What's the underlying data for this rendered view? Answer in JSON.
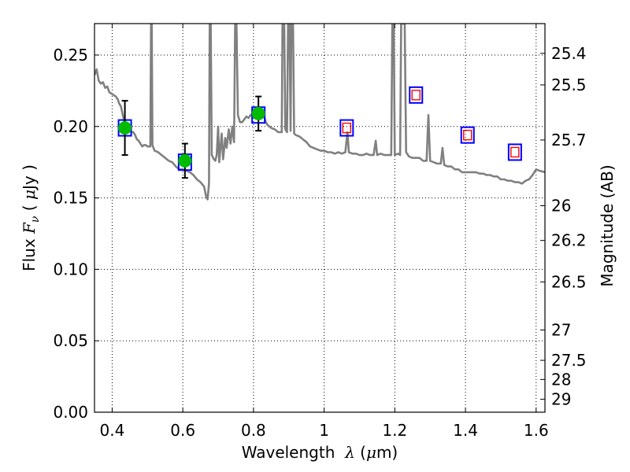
{
  "chart_data": {
    "type": "line",
    "xlabel": "Wavelength  λ (μm)",
    "ylabel": "Flux  F_ν  ( μJy )",
    "ylabel_parts": {
      "a": "Flux  ",
      "b": "F",
      "c": "ν",
      "d": "  ( ",
      "e": "μ",
      "f": "Jy )"
    },
    "xlabel_parts": {
      "a": "Wavelength  ",
      "b": "λ",
      "c": " (",
      "d": "μ",
      "e": "m)"
    },
    "y2label": "Magnitude (AB)",
    "xlim": [
      0.35,
      1.625
    ],
    "ylim": [
      0.0,
      0.272
    ],
    "grid": true,
    "x_ticks": [
      {
        "v": 0.4,
        "label": "0.4"
      },
      {
        "v": 0.6,
        "label": "0.6"
      },
      {
        "v": 0.8,
        "label": "0.8"
      },
      {
        "v": 1.0,
        "label": "1"
      },
      {
        "v": 1.2,
        "label": "1.2"
      },
      {
        "v": 1.4,
        "label": "1.4"
      },
      {
        "v": 1.6,
        "label": "1.6"
      }
    ],
    "y_ticks": [
      {
        "v": 0.0,
        "label": "0.00"
      },
      {
        "v": 0.05,
        "label": "0.05"
      },
      {
        "v": 0.1,
        "label": "0.10"
      },
      {
        "v": 0.15,
        "label": "0.15"
      },
      {
        "v": 0.2,
        "label": "0.20"
      },
      {
        "v": 0.25,
        "label": "0.25"
      }
    ],
    "y2_ticks": [
      {
        "mag": 25.4,
        "label": "25.4"
      },
      {
        "mag": 25.5,
        "label": "25.5"
      },
      {
        "mag": 25.7,
        "label": "25.7"
      },
      {
        "mag": 26,
        "label": "26"
      },
      {
        "mag": 26.2,
        "label": "26.2"
      },
      {
        "mag": 26.5,
        "label": "26.5"
      },
      {
        "mag": 27,
        "label": "27"
      },
      {
        "mag": 27.5,
        "label": "27.5"
      },
      {
        "mag": 28,
        "label": "28"
      },
      {
        "mag": 29,
        "label": "29"
      }
    ],
    "model_spectrum": {
      "color": "#808080",
      "points": [
        [
          0.35,
          0.236
        ],
        [
          0.356,
          0.24
        ],
        [
          0.362,
          0.232
        ],
        [
          0.368,
          0.23
        ],
        [
          0.374,
          0.231
        ],
        [
          0.38,
          0.227
        ],
        [
          0.386,
          0.228
        ],
        [
          0.392,
          0.224
        ],
        [
          0.398,
          0.223
        ],
        [
          0.404,
          0.222
        ],
        [
          0.41,
          0.221
        ],
        [
          0.416,
          0.219
        ],
        [
          0.42,
          0.216
        ],
        [
          0.425,
          0.214
        ],
        [
          0.43,
          0.208
        ],
        [
          0.435,
          0.203
        ],
        [
          0.44,
          0.201
        ],
        [
          0.445,
          0.199
        ],
        [
          0.45,
          0.198
        ],
        [
          0.455,
          0.196
        ],
        [
          0.46,
          0.196
        ],
        [
          0.465,
          0.194
        ],
        [
          0.47,
          0.191
        ],
        [
          0.475,
          0.19
        ],
        [
          0.48,
          0.188
        ],
        [
          0.485,
          0.186
        ],
        [
          0.49,
          0.187
        ],
        [
          0.495,
          0.187
        ],
        [
          0.5,
          0.186
        ],
        [
          0.505,
          0.186
        ],
        [
          0.508,
          0.186
        ],
        [
          0.51,
          0.272
        ],
        [
          0.512,
          0.272
        ],
        [
          0.514,
          0.187
        ],
        [
          0.52,
          0.183
        ],
        [
          0.53,
          0.182
        ],
        [
          0.54,
          0.18
        ],
        [
          0.55,
          0.178
        ],
        [
          0.56,
          0.176
        ],
        [
          0.57,
          0.175
        ],
        [
          0.58,
          0.172
        ],
        [
          0.59,
          0.17
        ],
        [
          0.6,
          0.17
        ],
        [
          0.61,
          0.169
        ],
        [
          0.62,
          0.168
        ],
        [
          0.63,
          0.166
        ],
        [
          0.64,
          0.163
        ],
        [
          0.65,
          0.161
        ],
        [
          0.66,
          0.158
        ],
        [
          0.666,
          0.151
        ],
        [
          0.67,
          0.149
        ],
        [
          0.674,
          0.16
        ],
        [
          0.676,
          0.272
        ],
        [
          0.679,
          0.272
        ],
        [
          0.682,
          0.18
        ],
        [
          0.688,
          0.177
        ],
        [
          0.692,
          0.176
        ],
        [
          0.696,
          0.18
        ],
        [
          0.7,
          0.2
        ],
        [
          0.703,
          0.175
        ],
        [
          0.71,
          0.195
        ],
        [
          0.714,
          0.177
        ],
        [
          0.72,
          0.192
        ],
        [
          0.724,
          0.185
        ],
        [
          0.73,
          0.198
        ],
        [
          0.735,
          0.188
        ],
        [
          0.74,
          0.2
        ],
        [
          0.745,
          0.189
        ],
        [
          0.748,
          0.272
        ],
        [
          0.752,
          0.272
        ],
        [
          0.756,
          0.208
        ],
        [
          0.762,
          0.203
        ],
        [
          0.768,
          0.203
        ],
        [
          0.774,
          0.205
        ],
        [
          0.78,
          0.207
        ],
        [
          0.786,
          0.206
        ],
        [
          0.792,
          0.208
        ],
        [
          0.798,
          0.209
        ],
        [
          0.804,
          0.21
        ],
        [
          0.81,
          0.212
        ],
        [
          0.816,
          0.211
        ],
        [
          0.82,
          0.209
        ],
        [
          0.825,
          0.208
        ],
        [
          0.83,
          0.207
        ],
        [
          0.835,
          0.203
        ],
        [
          0.84,
          0.201
        ],
        [
          0.845,
          0.2
        ],
        [
          0.85,
          0.199
        ],
        [
          0.86,
          0.198
        ],
        [
          0.87,
          0.196
        ],
        [
          0.88,
          0.196
        ],
        [
          0.882,
          0.272
        ],
        [
          0.887,
          0.272
        ],
        [
          0.89,
          0.198
        ],
        [
          0.895,
          0.196
        ],
        [
          0.898,
          0.272
        ],
        [
          0.902,
          0.272
        ],
        [
          0.905,
          0.197
        ],
        [
          0.907,
          0.272
        ],
        [
          0.912,
          0.272
        ],
        [
          0.915,
          0.195
        ],
        [
          0.92,
          0.194
        ],
        [
          0.93,
          0.193
        ],
        [
          0.94,
          0.191
        ],
        [
          0.95,
          0.189
        ],
        [
          0.96,
          0.186
        ],
        [
          0.97,
          0.185
        ],
        [
          0.98,
          0.184
        ],
        [
          0.99,
          0.183
        ],
        [
          1.0,
          0.183
        ],
        [
          1.01,
          0.182
        ],
        [
          1.02,
          0.182
        ],
        [
          1.03,
          0.181
        ],
        [
          1.04,
          0.182
        ],
        [
          1.05,
          0.181
        ],
        [
          1.06,
          0.182
        ],
        [
          1.066,
          0.196
        ],
        [
          1.07,
          0.182
        ],
        [
          1.08,
          0.181
        ],
        [
          1.09,
          0.181
        ],
        [
          1.1,
          0.18
        ],
        [
          1.11,
          0.18
        ],
        [
          1.12,
          0.181
        ],
        [
          1.13,
          0.18
        ],
        [
          1.14,
          0.18
        ],
        [
          1.146,
          0.19
        ],
        [
          1.15,
          0.18
        ],
        [
          1.16,
          0.181
        ],
        [
          1.17,
          0.18
        ],
        [
          1.18,
          0.18
        ],
        [
          1.19,
          0.18
        ],
        [
          1.193,
          0.272
        ],
        [
          1.197,
          0.272
        ],
        [
          1.2,
          0.18
        ],
        [
          1.21,
          0.181
        ],
        [
          1.215,
          0.18
        ],
        [
          1.218,
          0.272
        ],
        [
          1.228,
          0.272
        ],
        [
          1.232,
          0.182
        ],
        [
          1.24,
          0.179
        ],
        [
          1.25,
          0.178
        ],
        [
          1.26,
          0.178
        ],
        [
          1.27,
          0.178
        ],
        [
          1.28,
          0.176
        ],
        [
          1.29,
          0.176
        ],
        [
          1.295,
          0.208
        ],
        [
          1.3,
          0.176
        ],
        [
          1.31,
          0.175
        ],
        [
          1.32,
          0.174
        ],
        [
          1.33,
          0.174
        ],
        [
          1.335,
          0.185
        ],
        [
          1.34,
          0.173
        ],
        [
          1.35,
          0.172
        ],
        [
          1.36,
          0.172
        ],
        [
          1.37,
          0.17
        ],
        [
          1.38,
          0.17
        ],
        [
          1.39,
          0.168
        ],
        [
          1.4,
          0.168
        ],
        [
          1.41,
          0.168
        ],
        [
          1.42,
          0.168
        ],
        [
          1.43,
          0.168
        ],
        [
          1.44,
          0.167
        ],
        [
          1.45,
          0.167
        ],
        [
          1.46,
          0.166
        ],
        [
          1.47,
          0.166
        ],
        [
          1.48,
          0.165
        ],
        [
          1.49,
          0.165
        ],
        [
          1.5,
          0.163
        ],
        [
          1.51,
          0.163
        ],
        [
          1.52,
          0.162
        ],
        [
          1.53,
          0.162
        ],
        [
          1.54,
          0.161
        ],
        [
          1.55,
          0.161
        ],
        [
          1.56,
          0.16
        ],
        [
          1.57,
          0.162
        ],
        [
          1.58,
          0.163
        ],
        [
          1.59,
          0.166
        ],
        [
          1.6,
          0.17
        ],
        [
          1.61,
          0.169
        ],
        [
          1.625,
          0.168
        ]
      ]
    },
    "observed_points": [
      {
        "x": 0.436,
        "y": 0.199,
        "yerr": 0.019,
        "color": "#00bb00",
        "edge": "#0000ff"
      },
      {
        "x": 0.606,
        "y": 0.176,
        "yerr": 0.012,
        "color": "#00bb00",
        "edge": "#0000ff"
      },
      {
        "x": 0.814,
        "y": 0.209,
        "yerr": 0.012,
        "color": "#00bb00",
        "edge": "#0000ff"
      }
    ],
    "model_boxes": {
      "edge": "#0000ff",
      "inner_edge": "#ff0000",
      "points": [
        {
          "x": 0.436,
          "y": 0.199
        },
        {
          "x": 0.606,
          "y": 0.175
        },
        {
          "x": 0.814,
          "y": 0.208
        },
        {
          "x": 1.064,
          "y": 0.199
        },
        {
          "x": 1.26,
          "y": 0.222
        },
        {
          "x": 1.406,
          "y": 0.194
        },
        {
          "x": 1.54,
          "y": 0.182
        }
      ],
      "inner_on": [
        3,
        4,
        5,
        6
      ]
    }
  }
}
